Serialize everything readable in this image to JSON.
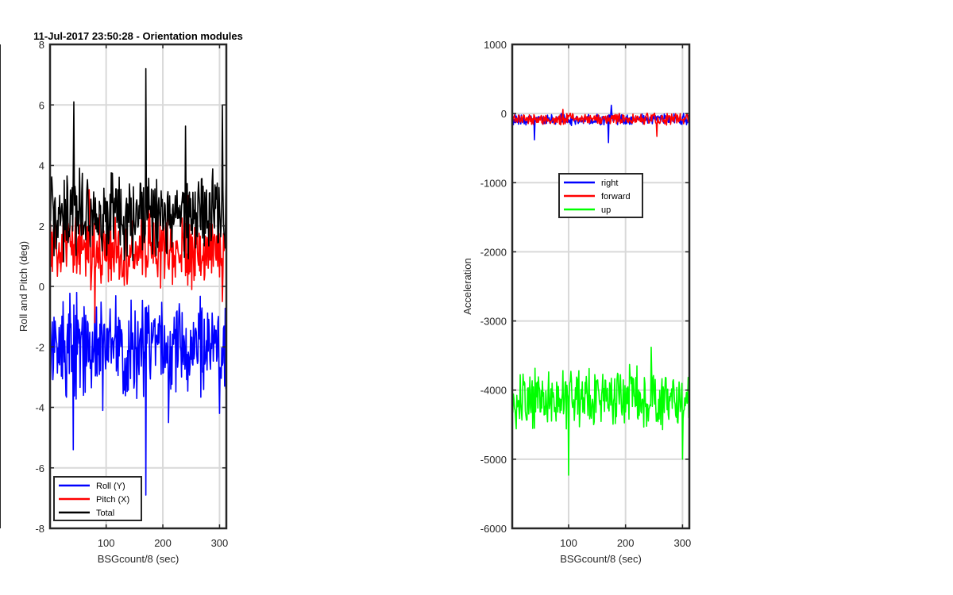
{
  "chart_data": [
    {
      "type": "line",
      "title": "11-Jul-2017 23:50:28 - Orientation modules",
      "xlabel": "BSGcount/8 (sec)",
      "ylabel": "Roll and Pitch (deg)",
      "xlim": [
        1,
        312
      ],
      "ylim": [
        -8,
        8
      ],
      "xticks": [
        100,
        200,
        300
      ],
      "yticks": [
        -8,
        -6,
        -4,
        -2,
        0,
        2,
        4,
        6,
        8
      ],
      "grid": true,
      "legend_position": "bottom-left",
      "series": [
        {
          "name": "Roll (Y)",
          "color": "#0000ff",
          "mean": -2.0,
          "amplitude": 1.2,
          "keypoints": [
            [
              42,
              -5.4
            ],
            [
              48,
              -0.2
            ],
            [
              94,
              -4.1
            ],
            [
              170,
              -6.9
            ],
            [
              210,
              -4.5
            ],
            [
              300,
              -4.2
            ]
          ]
        },
        {
          "name": "Pitch (X)",
          "color": "#ff0000",
          "mean": 1.2,
          "amplitude": 0.9,
          "keypoints": [
            [
              70,
              3.2
            ],
            [
              80,
              -1.2
            ],
            [
              175,
              2.9
            ],
            [
              245,
              3.0
            ],
            [
              305,
              -0.5
            ]
          ]
        },
        {
          "name": "Total",
          "color": "#000000",
          "mean": 2.4,
          "amplitude": 1.1,
          "keypoints": [
            [
              43,
              6.1
            ],
            [
              170,
              7.2
            ],
            [
              240,
              5.3
            ],
            [
              305,
              6.0
            ]
          ]
        }
      ]
    },
    {
      "type": "line",
      "title": "",
      "xlabel": "BSGcount/8 (sec)",
      "ylabel": "Acceleration",
      "xlim": [
        1,
        312
      ],
      "ylim": [
        -6000,
        1000
      ],
      "xticks": [
        100,
        200,
        300
      ],
      "yticks": [
        -6000,
        -5000,
        -4000,
        -3000,
        -2000,
        -1000,
        0,
        1000
      ],
      "grid": true,
      "legend_position": "upper-center",
      "series": [
        {
          "name": "right",
          "color": "#0000ff",
          "mean": -90,
          "amplitude": 70,
          "keypoints": [
            [
              175,
              120
            ],
            [
              170,
              -420
            ],
            [
              40,
              -380
            ]
          ]
        },
        {
          "name": "forward",
          "color": "#ff0000",
          "mean": -80,
          "amplitude": 60,
          "keypoints": [
            [
              90,
              60
            ],
            [
              255,
              -330
            ]
          ]
        },
        {
          "name": "up",
          "color": "#00ff00",
          "mean": -4100,
          "amplitude": 350,
          "keypoints": [
            [
              100,
              -3350
            ],
            [
              100,
              -5230
            ],
            [
              245,
              -3380
            ],
            [
              300,
              -5000
            ]
          ]
        }
      ]
    }
  ]
}
